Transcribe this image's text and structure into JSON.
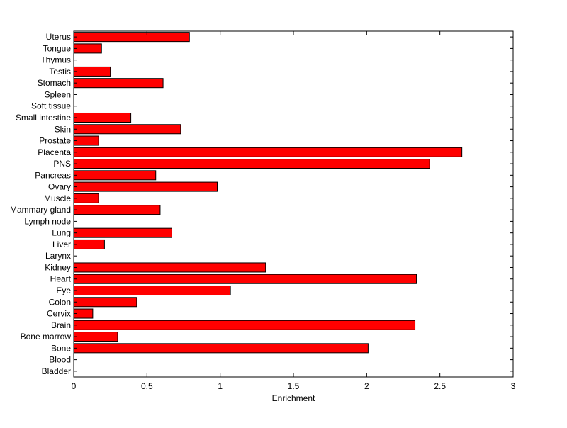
{
  "chart_data": {
    "type": "bar",
    "orientation": "horizontal",
    "categories": [
      "Bladder",
      "Blood",
      "Bone",
      "Bone marrow",
      "Brain",
      "Cervix",
      "Colon",
      "Eye",
      "Heart",
      "Kidney",
      "Larynx",
      "Liver",
      "Lung",
      "Lymph node",
      "Mammary gland",
      "Muscle",
      "Ovary",
      "Pancreas",
      "PNS",
      "Placenta",
      "Prostate",
      "Skin",
      "Small intestine",
      "Soft tissue",
      "Spleen",
      "Stomach",
      "Testis",
      "Thymus",
      "Tongue",
      "Uterus"
    ],
    "values": [
      0,
      0,
      2.01,
      0.3,
      2.33,
      0.13,
      0.43,
      1.07,
      2.34,
      1.31,
      0,
      0.21,
      0.67,
      0,
      0.59,
      0.17,
      0.98,
      0.56,
      2.43,
      2.65,
      0.17,
      0.73,
      0.39,
      0,
      0,
      0.61,
      0.25,
      0,
      0.19,
      0.79
    ],
    "title": "",
    "xlabel": "Enrichment",
    "ylabel": "",
    "xlim": [
      0,
      3
    ],
    "xticks": [
      "0",
      "0.5",
      "1",
      "1.5",
      "2",
      "2.5",
      "3"
    ],
    "grid": false,
    "colors": {
      "bar_fill": "#ff0000",
      "bar_edge": "#000000",
      "axes": "#000000",
      "background": "#ffffff"
    }
  }
}
